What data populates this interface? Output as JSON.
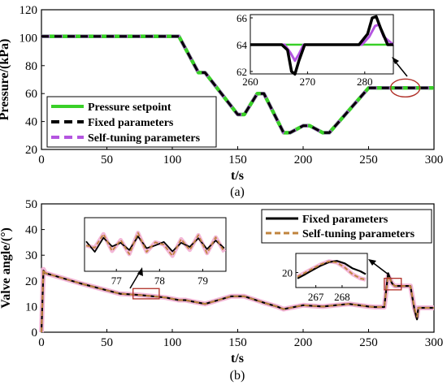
{
  "colors": {
    "setpoint": "#39d028",
    "fixed": "#000000",
    "selftuning_a": "#b455e0",
    "selftuning_b": "#c0843e",
    "highlight": "#b03028",
    "pink_halo": "#f3b7d7"
  },
  "chart_data": [
    {
      "type": "line",
      "caption": "(a)",
      "xlabel": "t/s",
      "ylabel": "Pressure/(kPa)",
      "xlim": [
        0,
        300
      ],
      "ylim": [
        20,
        120
      ],
      "xticks": [
        "0",
        "50",
        "100",
        "150",
        "200",
        "250",
        "300"
      ],
      "yticks": [
        "20",
        "40",
        "60",
        "80",
        "100",
        "120"
      ],
      "grid": false,
      "legend_position": "bottom-left",
      "series": [
        {
          "name": "Pressure setpoint",
          "style": "solid",
          "color": "#39d028",
          "x": [
            0,
            105,
            120,
            125,
            150,
            155,
            165,
            170,
            185,
            190,
            200,
            205,
            215,
            220,
            250,
            255,
            300
          ],
          "y": [
            101,
            101,
            75,
            75,
            45,
            45,
            60,
            60,
            32,
            32,
            37,
            37,
            32,
            32,
            64,
            64,
            64
          ]
        },
        {
          "name": "Fixed parameters",
          "style": "dashed",
          "color": "#000000",
          "x": [
            0,
            105,
            120,
            125,
            150,
            155,
            165,
            170,
            185,
            190,
            200,
            205,
            215,
            220,
            250,
            255,
            300
          ],
          "y": [
            101,
            101,
            75,
            75,
            45,
            45,
            60,
            60,
            32,
            32,
            37,
            37,
            32,
            32,
            64,
            64,
            64
          ]
        },
        {
          "name": "Self-tuning parameters",
          "style": "dashed",
          "color": "#b455e0",
          "x": [
            0,
            105,
            120,
            125,
            150,
            155,
            165,
            170,
            185,
            190,
            200,
            205,
            215,
            220,
            250,
            255,
            300
          ],
          "y": [
            101,
            101,
            75,
            75,
            45,
            45,
            60,
            60,
            32,
            32,
            37,
            37,
            32,
            32,
            64,
            64,
            64
          ]
        }
      ],
      "inset": {
        "xlim": [
          260,
          285
        ],
        "ylim": [
          62,
          66
        ],
        "xticks": [
          "260",
          "270",
          "280"
        ],
        "yticks": [
          "62",
          "64",
          "66"
        ],
        "series": [
          {
            "name": "Pressure setpoint",
            "x": [
              260,
              285
            ],
            "y": [
              64,
              64
            ]
          },
          {
            "name": "Fixed parameters",
            "x": [
              260,
              265.5,
              266.5,
              267.2,
              267.8,
              268.5,
              269.5,
              271,
              279,
              280.5,
              281.3,
              282,
              282.8,
              284,
              285
            ],
            "y": [
              64,
              64,
              63.6,
              62,
              61.8,
              62.8,
              64,
              64,
              64,
              64.8,
              66,
              66.1,
              65.2,
              64,
              64
            ]
          },
          {
            "name": "Self-tuning parameters",
            "x": [
              260,
              266,
              267,
              267.8,
              268.5,
              269.3,
              270.5,
              279.5,
              280.8,
              281.8,
              282.5,
              283.3,
              285
            ],
            "y": [
              64,
              64,
              63.4,
              62.8,
              63.3,
              64,
              64,
              64,
              64.6,
              65.4,
              65.5,
              64.6,
              64
            ]
          }
        ],
        "highlight_x": 278,
        "highlight_y": 64
      }
    },
    {
      "type": "line",
      "caption": "(b)",
      "xlabel": "t/s",
      "ylabel": "Valve angle/(°)",
      "xlim": [
        0,
        300
      ],
      "ylim": [
        0,
        50
      ],
      "xticks": [
        "0",
        "50",
        "100",
        "150",
        "200",
        "250",
        "300"
      ],
      "yticks": [
        "0",
        "10",
        "20",
        "30",
        "40",
        "50"
      ],
      "grid": false,
      "legend_position": "top-right",
      "series": [
        {
          "name": "Fixed parameters",
          "style": "solid",
          "color": "#000000",
          "x": [
            0,
            1.5,
            3,
            10,
            30,
            60,
            75,
            95,
            105,
            110,
            125,
            135,
            145,
            155,
            170,
            180,
            185,
            200,
            215,
            235,
            250,
            255,
            262,
            265,
            267,
            268,
            270,
            282,
            285,
            287,
            288,
            300
          ],
          "y": [
            0,
            24,
            23,
            22,
            19,
            15,
            14.5,
            13.5,
            12.5,
            12.5,
            11,
            12.5,
            14,
            14,
            11.5,
            10,
            9,
            10.5,
            10,
            11,
            10,
            9.8,
            9.8,
            23,
            20,
            19,
            18,
            18,
            9,
            5,
            9.5,
            9.5
          ]
        },
        {
          "name": "Self-tuning parameters",
          "style": "dashed",
          "color": "#c0843e",
          "x": [
            0,
            1.5,
            3,
            10,
            30,
            60,
            75,
            95,
            105,
            110,
            125,
            135,
            145,
            155,
            170,
            180,
            185,
            200,
            215,
            235,
            250,
            255,
            262,
            265,
            267,
            268,
            270,
            282,
            285,
            287,
            288,
            300
          ],
          "y": [
            0,
            24.5,
            23,
            22,
            19,
            15,
            14.5,
            13.5,
            12.5,
            12.5,
            11,
            12.5,
            14,
            14,
            11.5,
            10,
            9,
            10.5,
            10,
            11,
            10,
            9.8,
            9.8,
            22,
            20,
            19,
            18,
            18,
            9.5,
            6,
            9.5,
            9.5
          ]
        }
      ],
      "inset_left": {
        "xlim": [
          76.3,
          79.5
        ],
        "xticks": [
          "77",
          "78",
          "79"
        ],
        "series": [
          {
            "name": "Fixed parameters",
            "x": [
              76.3,
              76.5,
              76.7,
              76.9,
              77.1,
              77.3,
              77.5,
              77.7,
              77.9,
              78.1,
              78.3,
              78.5,
              78.7,
              78.9,
              79.1,
              79.3,
              79.5
            ],
            "y": [
              35.5,
              33.2,
              36.3,
              34.4,
              35.2,
              33.6,
              36.6,
              34.0,
              34.6,
              35.4,
              33.3,
              35.2,
              34.3,
              36.2,
              33.8,
              35.7,
              34.0
            ]
          },
          {
            "name": "Self-tuning parameters",
            "x": [
              76.3,
              76.5,
              76.7,
              76.9,
              77.1,
              77.3,
              77.5,
              77.7,
              77.9,
              78.1,
              78.3,
              78.5,
              78.7,
              78.9,
              79.1,
              79.3,
              79.5
            ],
            "y": [
              34.6,
              34.1,
              37.1,
              33.4,
              35.8,
              32.7,
              37.4,
              33.2,
              35.3,
              34.8,
              32.3,
              36.0,
              33.6,
              36.9,
              32.9,
              36.4,
              33.2
            ]
          }
        ],
        "highlight_x": [
          70,
          90
        ],
        "highlight_y": [
          13,
          17
        ]
      },
      "inset_right": {
        "xlim": [
          266.3,
          268.9
        ],
        "xticks": [
          "267",
          "268"
        ],
        "yticks": [
          "20"
        ],
        "series": [
          {
            "name": "Fixed parameters",
            "x": [
              266.3,
              266.6,
              266.9,
              267.2,
              267.5,
              267.8,
              268.1,
              268.4,
              268.7,
              268.9
            ],
            "y": [
              18.6,
              19.6,
              20.7,
              21.7,
              22.5,
              22.8,
              22.2,
              21.0,
              20.3,
              19.6
            ]
          },
          {
            "name": "Self-tuning parameters",
            "x": [
              266.3,
              266.6,
              266.9,
              267.2,
              267.5,
              267.8,
              268.1,
              268.4,
              268.7,
              268.9
            ],
            "y": [
              19.0,
              20.0,
              21.0,
              22.0,
              22.7,
              22.4,
              21.2,
              19.6,
              18.6,
              18.3
            ]
          }
        ],
        "highlight_x": [
          262,
          275
        ],
        "highlight_y": [
          16.5,
          21
        ]
      }
    }
  ]
}
